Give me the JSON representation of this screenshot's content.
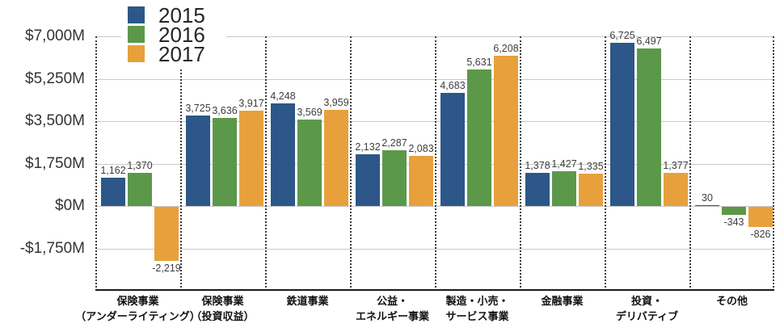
{
  "chart_data": {
    "type": "bar",
    "title": "",
    "legend_position": "top-left",
    "grid": true,
    "background": "#ffffff",
    "y_axis": {
      "ylim": [
        -3500,
        7000
      ],
      "tick_step": 1750,
      "ticks": [
        {
          "value": 7000,
          "label": "$7,000M"
        },
        {
          "value": 5250,
          "label": "$5,250M"
        },
        {
          "value": 3500,
          "label": "$3,500M"
        },
        {
          "value": 1750,
          "label": "$1,750M"
        },
        {
          "value": 0,
          "label": "$0M"
        },
        {
          "value": -1750,
          "label": "-$1,750M"
        }
      ]
    },
    "categories": [
      "保険事業\n（アンダーライティング）",
      "保険事業\n（投資収益）",
      "鉄道事業",
      "公益・\nエネルギー事業",
      "製造・小売・\nサービス事業",
      "金融事業",
      "投資・\nデリバティブ",
      "その他"
    ],
    "series": [
      {
        "name": "2015",
        "color": "#2C5788",
        "values": [
          1162,
          3725,
          4248,
          2132,
          4683,
          1378,
          6725,
          30
        ]
      },
      {
        "name": "2016",
        "color": "#5C9849",
        "values": [
          1370,
          3636,
          3569,
          2287,
          5631,
          1427,
          6497,
          -343
        ]
      },
      {
        "name": "2017",
        "color": "#E8A03C",
        "values": [
          -2219,
          3917,
          3959,
          2083,
          6208,
          1335,
          1377,
          -826
        ]
      }
    ],
    "value_labels_visible": true
  },
  "colors": {
    "gridline": "#c9c9c9",
    "axis_line": "#1a1a1a",
    "separator": "#3b3b3b",
    "value_label": "#3d3d3d",
    "y_label": "#333333",
    "x_label": "#111111"
  }
}
